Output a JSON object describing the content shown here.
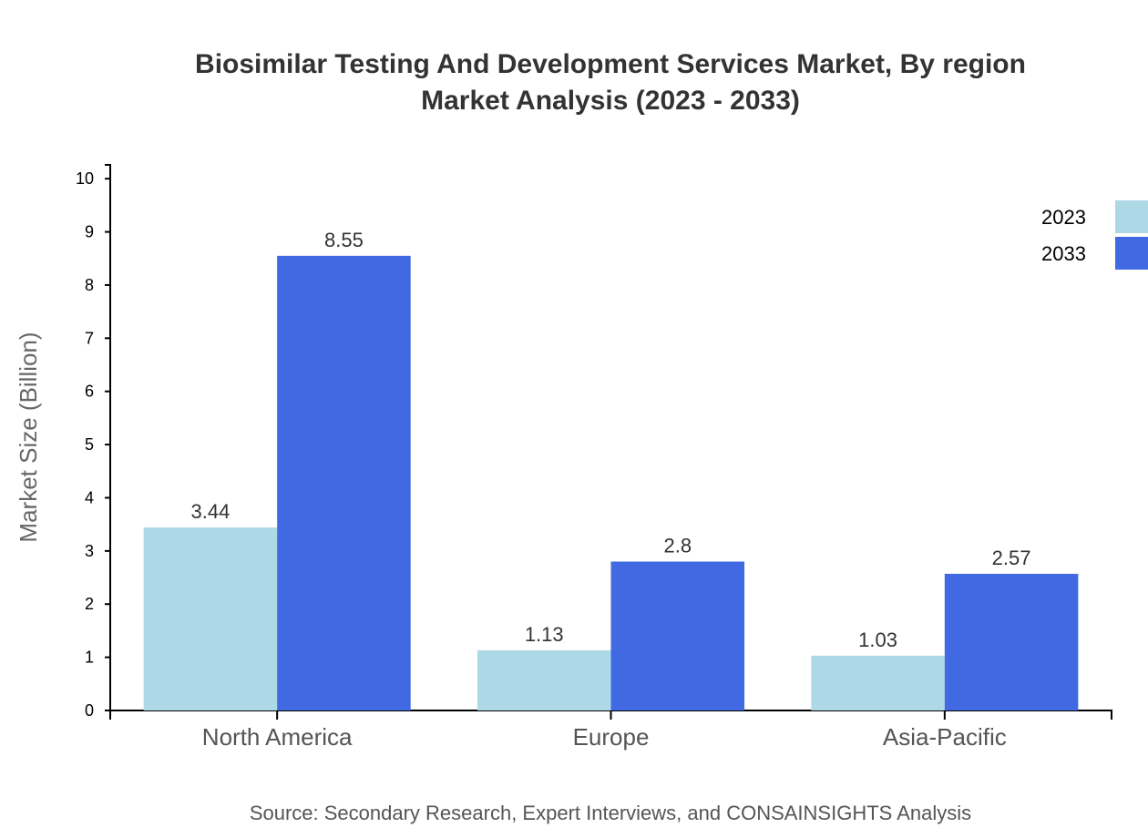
{
  "chart_data": {
    "type": "bar",
    "title": "Biosimilar Testing And Development Services Market, By region",
    "subtitle": "Market Analysis (2023 - 2033)",
    "xlabel": "",
    "ylabel": "Market Size (Billion)",
    "categories": [
      "North America",
      "Europe",
      "Asia-Pacific"
    ],
    "series": [
      {
        "name": "2023",
        "values": [
          3.44,
          1.13,
          1.03
        ],
        "color": "#add8e6"
      },
      {
        "name": "2033",
        "values": [
          8.55,
          2.8,
          2.57
        ],
        "color": "#4169e1"
      }
    ],
    "ylim": [
      0,
      10.26
    ],
    "yticks": [
      0,
      1,
      2,
      3,
      4,
      5,
      6,
      7,
      8,
      9,
      10
    ],
    "grid": false,
    "legend": "top-right",
    "source": "Source: Secondary Research, Expert Interviews, and CONSAINSIGHTS Analysis"
  }
}
